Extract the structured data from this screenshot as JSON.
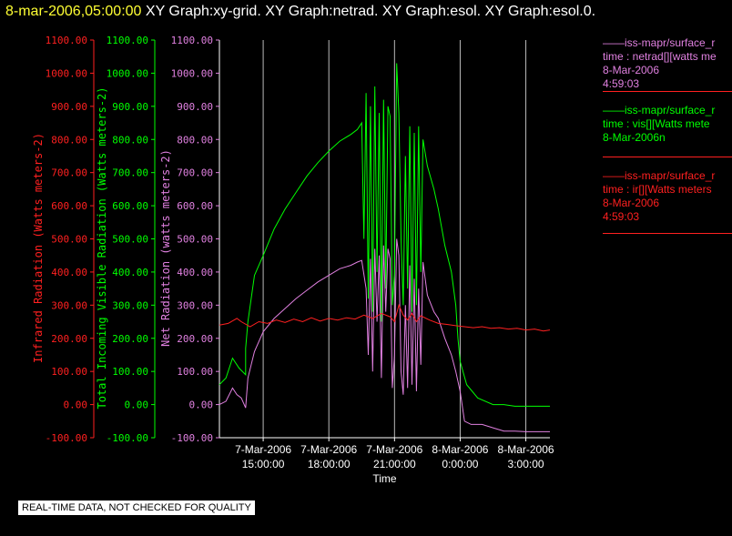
{
  "title": {
    "time": "8-mar-2006,05:00:00",
    "rest": "XY Graph:xy-grid.  XY Graph:netrad.  XY Graph:esol.  XY Graph:esol.0."
  },
  "colors": {
    "red": "#ff2020",
    "green": "#00ff00",
    "magenta": "#e080e0",
    "grid": "#bbbbbb",
    "axis": "#ffffff"
  },
  "legend": [
    {
      "color": "#e080e0",
      "lines": [
        "——iss-mapr/surface_r",
        "time : netrad[][watts me",
        "8-Mar-2006",
        "4:59:03"
      ]
    },
    {
      "color": "#00ff00",
      "lines": [
        "——iss-mapr/surface_r",
        "time : vis[][Watts mete",
        "8-Mar-2006n"
      ]
    },
    {
      "color": "#ff2020",
      "lines": [
        "——iss-mapr/surface_r",
        "time : ir[][Watts meters",
        "8-Mar-2006",
        "4:59:03"
      ]
    }
  ],
  "notice": "REAL-TIME DATA, NOT CHECKED FOR QUALITY",
  "chart_data": {
    "type": "line",
    "x_label": "Time",
    "x_range_hours": [
      13.0,
      28.1
    ],
    "x_ticks": [
      {
        "hour": 15,
        "date": "7-Mar-2006",
        "time": "15:00:00"
      },
      {
        "hour": 18,
        "date": "7-Mar-2006",
        "time": "18:00:00"
      },
      {
        "hour": 21,
        "date": "7-Mar-2006",
        "time": "21:00:00"
      },
      {
        "hour": 24,
        "date": "8-Mar-2006",
        "time": "0:00:00"
      },
      {
        "hour": 27,
        "date": "8-Mar-2006",
        "time": "3:00:00"
      }
    ],
    "axes": [
      {
        "id": "ir",
        "label": "Infrared Radiation (Watts meters-2)",
        "color": "#ff2020",
        "range": [
          -100,
          1100
        ],
        "ticks": [
          "1100.00",
          "1000.00",
          "900.00",
          "800.00",
          "700.00",
          "600.00",
          "500.00",
          "400.00",
          "300.00",
          "200.00",
          "100.00",
          "0.00",
          "-100.00"
        ]
      },
      {
        "id": "vis",
        "label": "Total Incoming Visible Radiation (Watts meters-2)",
        "color": "#00ff00",
        "range": [
          -100,
          1100
        ],
        "ticks": [
          "1100.00",
          "1000.00",
          "900.00",
          "800.00",
          "700.00",
          "600.00",
          "500.00",
          "400.00",
          "300.00",
          "200.00",
          "100.00",
          "0.00",
          "-100.00"
        ]
      },
      {
        "id": "net",
        "label": "Net Radiation (watts meters-2)",
        "color": "#e080e0",
        "range": [
          -100,
          1100
        ],
        "ticks": [
          "1100.00",
          "1000.00",
          "900.00",
          "800.00",
          "700.00",
          "600.00",
          "500.00",
          "400.00",
          "300.00",
          "200.00",
          "100.00",
          "0.00",
          "-100.00"
        ]
      }
    ],
    "series": [
      {
        "name": "vis",
        "color": "#00ff00",
        "points": [
          [
            13.0,
            60
          ],
          [
            13.3,
            80
          ],
          [
            13.6,
            140
          ],
          [
            13.9,
            110
          ],
          [
            14.2,
            90
          ],
          [
            14.2,
            170
          ],
          [
            14.3,
            250
          ],
          [
            14.6,
            390
          ],
          [
            15.0,
            450
          ],
          [
            15.5,
            530
          ],
          [
            16.0,
            590
          ],
          [
            16.5,
            640
          ],
          [
            17.0,
            690
          ],
          [
            17.5,
            730
          ],
          [
            18.0,
            765
          ],
          [
            18.5,
            795
          ],
          [
            19.0,
            815
          ],
          [
            19.3,
            830
          ],
          [
            19.5,
            850
          ],
          [
            19.6,
            500
          ],
          [
            19.7,
            940
          ],
          [
            19.8,
            320
          ],
          [
            19.9,
            900
          ],
          [
            20.0,
            280
          ],
          [
            20.1,
            960
          ],
          [
            20.2,
            400
          ],
          [
            20.3,
            880
          ],
          [
            20.4,
            250
          ],
          [
            20.5,
            920
          ],
          [
            20.6,
            350
          ],
          [
            20.7,
            900
          ],
          [
            20.8,
            870
          ],
          [
            20.9,
            300
          ],
          [
            21.0,
            400
          ],
          [
            21.1,
            1030
          ],
          [
            21.2,
            880
          ],
          [
            21.3,
            500
          ],
          [
            21.4,
            300
          ],
          [
            21.5,
            750
          ],
          [
            21.6,
            350
          ],
          [
            21.7,
            840
          ],
          [
            21.8,
            280
          ],
          [
            21.9,
            820
          ],
          [
            22.0,
            300
          ],
          [
            22.1,
            840
          ],
          [
            22.2,
            400
          ],
          [
            22.3,
            800
          ],
          [
            22.5,
            720
          ],
          [
            22.8,
            650
          ],
          [
            23.0,
            590
          ],
          [
            23.3,
            480
          ],
          [
            23.6,
            400
          ],
          [
            23.8,
            300
          ],
          [
            23.9,
            200
          ],
          [
            24.0,
            130
          ],
          [
            24.3,
            60
          ],
          [
            24.8,
            20
          ],
          [
            25.5,
            0
          ],
          [
            26.0,
            0
          ],
          [
            26.5,
            -5
          ],
          [
            27.0,
            -5
          ],
          [
            27.5,
            -5
          ],
          [
            28.1,
            -5
          ]
        ]
      },
      {
        "name": "net",
        "color": "#e080e0",
        "points": [
          [
            13.0,
            0
          ],
          [
            13.3,
            10
          ],
          [
            13.6,
            50
          ],
          [
            13.8,
            30
          ],
          [
            14.0,
            20
          ],
          [
            14.2,
            -10
          ],
          [
            14.3,
            80
          ],
          [
            14.6,
            160
          ],
          [
            15.0,
            220
          ],
          [
            15.5,
            260
          ],
          [
            16.0,
            290
          ],
          [
            16.5,
            320
          ],
          [
            17.0,
            345
          ],
          [
            17.5,
            370
          ],
          [
            18.0,
            390
          ],
          [
            18.5,
            410
          ],
          [
            19.0,
            420
          ],
          [
            19.3,
            430
          ],
          [
            19.5,
            435
          ],
          [
            19.7,
            350
          ],
          [
            19.8,
            150
          ],
          [
            19.9,
            440
          ],
          [
            20.0,
            100
          ],
          [
            20.1,
            470
          ],
          [
            20.2,
            250
          ],
          [
            20.3,
            450
          ],
          [
            20.4,
            80
          ],
          [
            20.5,
            480
          ],
          [
            20.6,
            280
          ],
          [
            20.7,
            470
          ],
          [
            20.8,
            440
          ],
          [
            20.9,
            50
          ],
          [
            21.0,
            150
          ],
          [
            21.1,
            500
          ],
          [
            21.2,
            450
          ],
          [
            21.3,
            100
          ],
          [
            21.4,
            30
          ],
          [
            21.5,
            300
          ],
          [
            21.6,
            50
          ],
          [
            21.7,
            420
          ],
          [
            21.8,
            60
          ],
          [
            21.9,
            380
          ],
          [
            22.0,
            40
          ],
          [
            22.1,
            350
          ],
          [
            22.2,
            120
          ],
          [
            22.3,
            430
          ],
          [
            22.5,
            330
          ],
          [
            22.8,
            280
          ],
          [
            23.0,
            260
          ],
          [
            23.3,
            200
          ],
          [
            23.6,
            150
          ],
          [
            23.8,
            100
          ],
          [
            24.0,
            40
          ],
          [
            24.2,
            -50
          ],
          [
            24.5,
            -60
          ],
          [
            25.0,
            -60
          ],
          [
            25.5,
            -70
          ],
          [
            26.0,
            -80
          ],
          [
            26.5,
            -80
          ],
          [
            27.0,
            -82
          ],
          [
            27.5,
            -82
          ],
          [
            28.1,
            -82
          ]
        ]
      },
      {
        "name": "ir",
        "color": "#ff2020",
        "points": [
          [
            13.0,
            240
          ],
          [
            13.4,
            245
          ],
          [
            13.8,
            260
          ],
          [
            14.0,
            250
          ],
          [
            14.4,
            235
          ],
          [
            14.8,
            250
          ],
          [
            15.2,
            245
          ],
          [
            15.6,
            255
          ],
          [
            16.0,
            248
          ],
          [
            16.4,
            258
          ],
          [
            16.8,
            250
          ],
          [
            17.2,
            262
          ],
          [
            17.6,
            252
          ],
          [
            18.0,
            260
          ],
          [
            18.4,
            255
          ],
          [
            18.8,
            262
          ],
          [
            19.2,
            258
          ],
          [
            19.6,
            270
          ],
          [
            20.0,
            260
          ],
          [
            20.4,
            275
          ],
          [
            20.8,
            265
          ],
          [
            21.0,
            250
          ],
          [
            21.2,
            300
          ],
          [
            21.4,
            270
          ],
          [
            21.6,
            255
          ],
          [
            21.8,
            275
          ],
          [
            22.0,
            250
          ],
          [
            22.2,
            268
          ],
          [
            22.6,
            255
          ],
          [
            23.0,
            245
          ],
          [
            23.4,
            242
          ],
          [
            23.8,
            238
          ],
          [
            24.2,
            235
          ],
          [
            24.6,
            232
          ],
          [
            25.0,
            235
          ],
          [
            25.4,
            230
          ],
          [
            25.8,
            232
          ],
          [
            26.2,
            228
          ],
          [
            26.6,
            230
          ],
          [
            27.0,
            225
          ],
          [
            27.4,
            228
          ],
          [
            27.8,
            222
          ],
          [
            28.1,
            225
          ]
        ]
      }
    ]
  }
}
